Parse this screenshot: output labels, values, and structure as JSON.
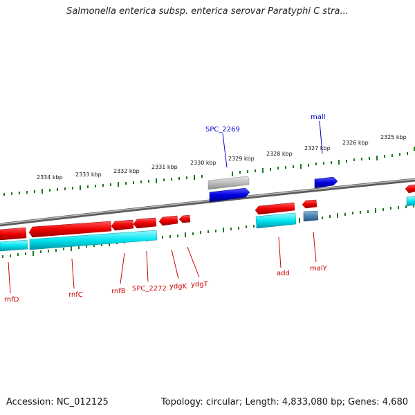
{
  "title": "Salmonella enterica subsp. enterica serovar Paratyphi C stra...",
  "footer": {
    "accession": "Accession: NC_012125",
    "topology": "Topology: circular; Length: 4,833,080 bp; Genes: 4,680"
  },
  "colors": {
    "gene_forward": "#0000dd",
    "gene_forward_pseudo": "#b8b8b8",
    "gene_reverse": "#ee0000",
    "cds_reverse": "#00e5ee",
    "cds_reverse_alt": "#4682b4",
    "ticks": "#1a7a1a",
    "backbone": "#808080",
    "label_forward": "#0000cc",
    "label_reverse": "#cc0000"
  },
  "kbp_labels": [
    "2334 kbp",
    "2333 kbp",
    "2332 kbp",
    "2331 kbp",
    "2330 kbp",
    "2329 kbp",
    "2328 kbp",
    "2327 kbp",
    "2326 kbp",
    "2325 kbp"
  ],
  "genes_forward": [
    "SPC_2269",
    "malI"
  ],
  "genes_reverse": [
    "rnfD",
    "rnfC",
    "rnfB",
    "SPC_2272",
    "ydgK",
    "ydgT",
    "add",
    "malY"
  ]
}
